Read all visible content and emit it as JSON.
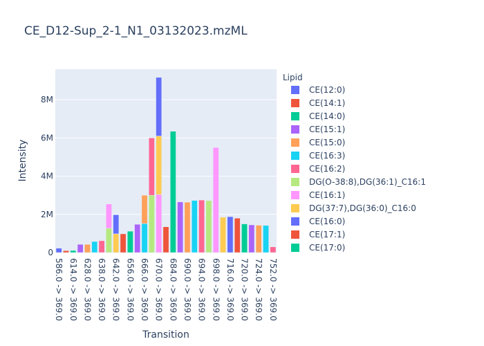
{
  "chart_data": {
    "type": "bar",
    "title": "CE_D12-Sup_2-1_N1_03132023.mzML",
    "xlabel": "Transition",
    "ylabel": "Intensity",
    "ylim": [
      0,
      9600000
    ],
    "y_ticks": [
      {
        "value": 0,
        "label": "0"
      },
      {
        "value": 2000000,
        "label": "2M"
      },
      {
        "value": 4000000,
        "label": "4M"
      },
      {
        "value": 6000000,
        "label": "6M"
      },
      {
        "value": 8000000,
        "label": "8M"
      }
    ],
    "x_tick_labels": [
      "586.0 -> 369.0",
      "614.0 -> 369.0",
      "628.0 -> 369.0",
      "638.0 -> 369.0",
      "642.0 -> 369.0",
      "656.0 -> 369.0",
      "666.0 -> 369.0",
      "670.0 -> 369.0",
      "684.0 -> 369.0",
      "690.0 -> 369.0",
      "694.0 -> 369.0",
      "698.0 -> 369.0",
      "716.0 -> 369.0",
      "720.0 -> 369.0",
      "724.0 -> 369.0",
      "752.0 -> 369.0"
    ],
    "legend_title": "Lipid",
    "legend_position": "right",
    "grid": true,
    "background": "#e5ecf6",
    "series": [
      {
        "name": "CE(12:0)",
        "color": "#636efa"
      },
      {
        "name": "CE(14:1)",
        "color": "#ef553b"
      },
      {
        "name": "CE(14:0)",
        "color": "#00cc96"
      },
      {
        "name": "CE(15:1)",
        "color": "#ab63fa"
      },
      {
        "name": "CE(15:0)",
        "color": "#ffa15a"
      },
      {
        "name": "CE(16:3)",
        "color": "#19d3f3"
      },
      {
        "name": "CE(16:2)",
        "color": "#ff6692"
      },
      {
        "name": "DG(O-38:8),DG(36:1)_C16:1",
        "color": "#b6e880"
      },
      {
        "name": "CE(16:1)",
        "color": "#ff97ff"
      },
      {
        "name": "DG(37:7),DG(36:0)_C16:0",
        "color": "#fecb52"
      },
      {
        "name": "CE(16:0)",
        "color": "#636efa"
      },
      {
        "name": "CE(17:1)",
        "color": "#ef553b"
      },
      {
        "name": "CE(17:0)",
        "color": "#00cc96"
      }
    ],
    "bars": [
      {
        "slot": 0,
        "series": 0,
        "value": 230000
      },
      {
        "slot": 1,
        "series": 1,
        "value": 100000
      },
      {
        "slot": 2,
        "series": 2,
        "value": 110000
      },
      {
        "slot": 3,
        "series": 3,
        "value": 430000
      },
      {
        "slot": 4,
        "series": 4,
        "value": 430000
      },
      {
        "slot": 5,
        "series": 5,
        "value": 580000
      },
      {
        "slot": 6,
        "series": 6,
        "value": 620000
      },
      {
        "slot": 7,
        "series": 7,
        "value": 1270000
      },
      {
        "slot": 7,
        "series": 8,
        "value": 1270000
      },
      {
        "slot": 8,
        "series": 9,
        "value": 980000
      },
      {
        "slot": 8,
        "series": 10,
        "value": 1000000
      },
      {
        "slot": 9,
        "series": 11,
        "value": 980000
      },
      {
        "slot": 10,
        "series": 12,
        "value": 1120000
      },
      {
        "slot": 11,
        "series": 3,
        "value": 1480000
      },
      {
        "slot": 12,
        "series": 5,
        "value": 1520000
      },
      {
        "slot": 12,
        "series": 4,
        "value": 1480000
      },
      {
        "slot": 13,
        "series": 7,
        "value": 3000000
      },
      {
        "slot": 13,
        "series": 6,
        "value": 3000000
      },
      {
        "slot": 14,
        "series": 8,
        "value": 3040000
      },
      {
        "slot": 14,
        "series": 9,
        "value": 3060000
      },
      {
        "slot": 14,
        "series": 10,
        "value": 3070000
      },
      {
        "slot": 15,
        "series": 1,
        "value": 1350000
      },
      {
        "slot": 16,
        "series": 2,
        "value": 6350000
      },
      {
        "slot": 17,
        "series": 3,
        "value": 2650000
      },
      {
        "slot": 18,
        "series": 4,
        "value": 2640000
      },
      {
        "slot": 19,
        "series": 5,
        "value": 2730000
      },
      {
        "slot": 20,
        "series": 6,
        "value": 2750000
      },
      {
        "slot": 21,
        "series": 7,
        "value": 2720000
      },
      {
        "slot": 22,
        "series": 8,
        "value": 5500000
      },
      {
        "slot": 23,
        "series": 9,
        "value": 1850000
      },
      {
        "slot": 24,
        "series": 10,
        "value": 1880000
      },
      {
        "slot": 25,
        "series": 11,
        "value": 1800000
      },
      {
        "slot": 26,
        "series": 12,
        "value": 1500000
      },
      {
        "slot": 27,
        "series": 3,
        "value": 1450000
      },
      {
        "slot": 28,
        "series": 4,
        "value": 1430000
      },
      {
        "slot": 29,
        "series": 5,
        "value": 1420000
      },
      {
        "slot": 30,
        "series": 6,
        "value": 300000
      }
    ]
  }
}
